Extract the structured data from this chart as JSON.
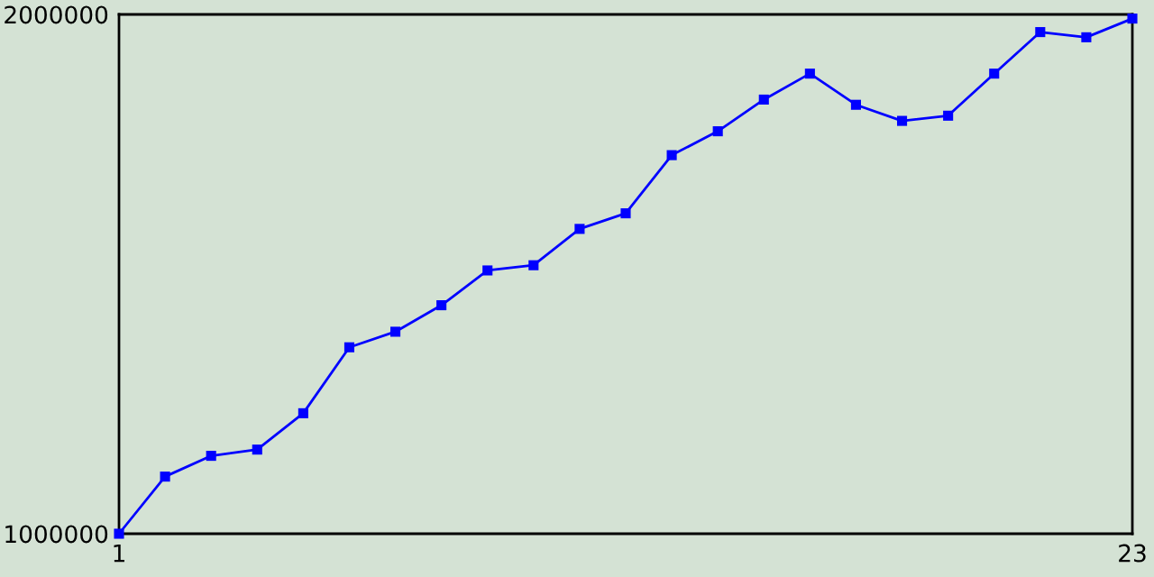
{
  "chart_data": {
    "type": "line",
    "x": [
      1,
      2,
      3,
      4,
      5,
      6,
      7,
      8,
      9,
      10,
      11,
      12,
      13,
      14,
      15,
      16,
      17,
      18,
      19,
      20,
      21,
      22,
      23
    ],
    "series": [
      {
        "color": "#0000ff",
        "values": [
          1000000,
          1110000,
          1150000,
          1162000,
          1232000,
          1359000,
          1389000,
          1440000,
          1507000,
          1517000,
          1587000,
          1617000,
          1729000,
          1775000,
          1836000,
          1886000,
          1826000,
          1795000,
          1805000,
          1886000,
          1966000,
          1956000,
          1992000
        ]
      }
    ],
    "xlim": [
      1,
      23
    ],
    "xticks": [
      1,
      23
    ],
    "ylim": [
      1000000,
      2000000
    ],
    "yticks": [
      1000000,
      2000000
    ],
    "marker": "square",
    "line_style": "solid",
    "legend": false
  }
}
